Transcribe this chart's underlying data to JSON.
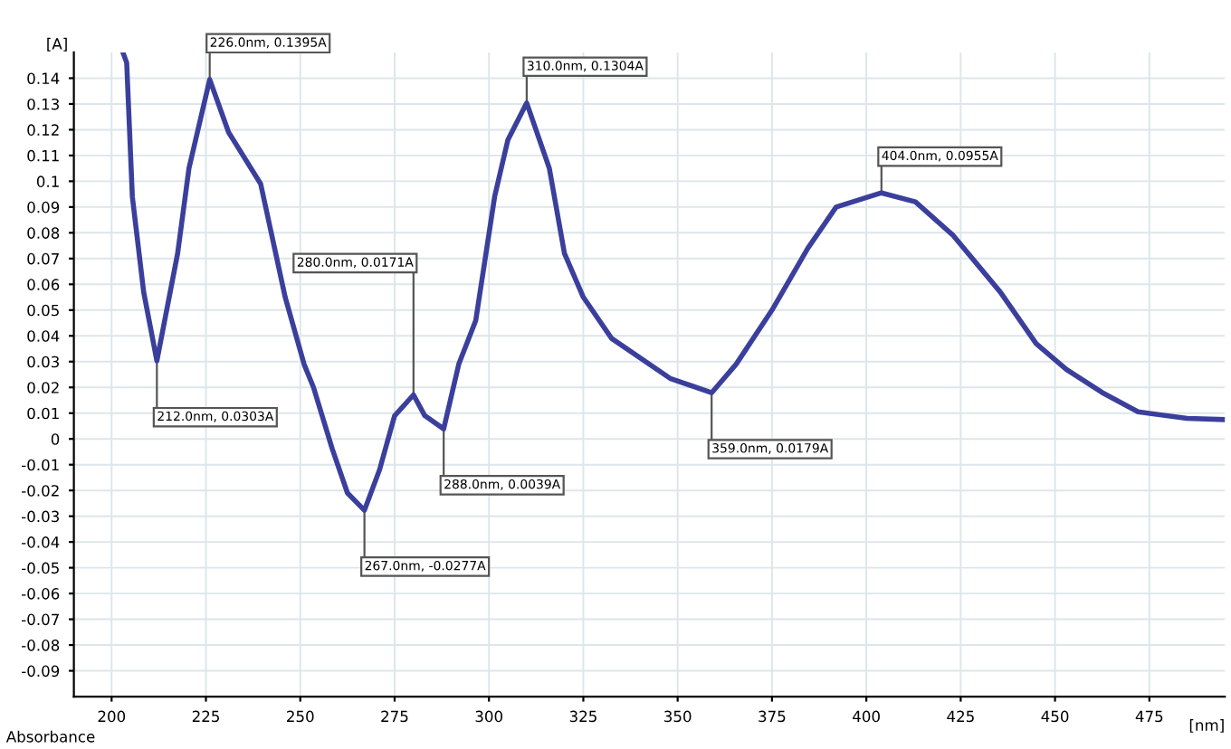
{
  "chart_data": {
    "type": "line",
    "xlabel": "[nm]",
    "ylabel": "[A]",
    "x": [
      203,
      204,
      205.5,
      208.5,
      212,
      217.5,
      220.5,
      226,
      231,
      239.5,
      246,
      251,
      253.5,
      258.5,
      262.5,
      267,
      271,
      275,
      280,
      283,
      288,
      292,
      296.5,
      301.5,
      305,
      310,
      316,
      320,
      325,
      332.5,
      348,
      359,
      365.5,
      375,
      384.5,
      392,
      404,
      413,
      423,
      435.5,
      445,
      453,
      462.5,
      472,
      485,
      495
    ],
    "series": [
      {
        "color": "#3b3f9c",
        "values": [
          0.15,
          0.146,
          0.094,
          0.057,
          0.0303,
          0.072,
          0.105,
          0.1395,
          0.119,
          0.099,
          0.055,
          0.029,
          0.02,
          -0.004,
          -0.021,
          -0.0277,
          -0.012,
          0.009,
          0.0171,
          0.009,
          0.0039,
          0.029,
          0.046,
          0.094,
          0.116,
          0.1304,
          0.105,
          0.072,
          0.055,
          0.039,
          0.0235,
          0.0179,
          0.029,
          0.05,
          0.074,
          0.09,
          0.0955,
          0.092,
          0.079,
          0.057,
          0.037,
          0.027,
          0.018,
          0.0105,
          0.008,
          0.0075
        ]
      }
    ],
    "xlim": [
      190,
      495
    ],
    "ylim": [
      -0.1,
      0.15
    ],
    "xticks": [
      200,
      225,
      250,
      275,
      300,
      325,
      350,
      375,
      400,
      425,
      450,
      475
    ],
    "yticks": [
      -0.09,
      -0.08,
      -0.07,
      -0.06,
      -0.05,
      -0.04,
      -0.03,
      -0.02,
      -0.01,
      0,
      0.01,
      0.02,
      0.03,
      0.04,
      0.05,
      0.06,
      0.07,
      0.08,
      0.09,
      0.1,
      0.11,
      0.12,
      0.13,
      0.14
    ],
    "grid": true,
    "legend": false,
    "marker": "none",
    "line_style": "solid",
    "annotations": [
      {
        "text": "212.0nm, 0.0303A",
        "x": 212,
        "y": 0.0303
      },
      {
        "text": "226.0nm, 0.1395A",
        "x": 226,
        "y": 0.1395
      },
      {
        "text": "267.0nm, -0.0277A",
        "x": 267,
        "y": -0.0277
      },
      {
        "text": "280.0nm, 0.0171A",
        "x": 280,
        "y": 0.0171
      },
      {
        "text": "288.0nm, 0.0039A",
        "x": 288,
        "y": 0.0039
      },
      {
        "text": "310.0nm, 0.1304A",
        "x": 310,
        "y": 0.1304
      },
      {
        "text": "359.0nm, 0.0179A",
        "x": 359,
        "y": 0.0179
      },
      {
        "text": "404.0nm, 0.0955A",
        "x": 404,
        "y": 0.0955
      },
      "Absorbance"
    ]
  }
}
